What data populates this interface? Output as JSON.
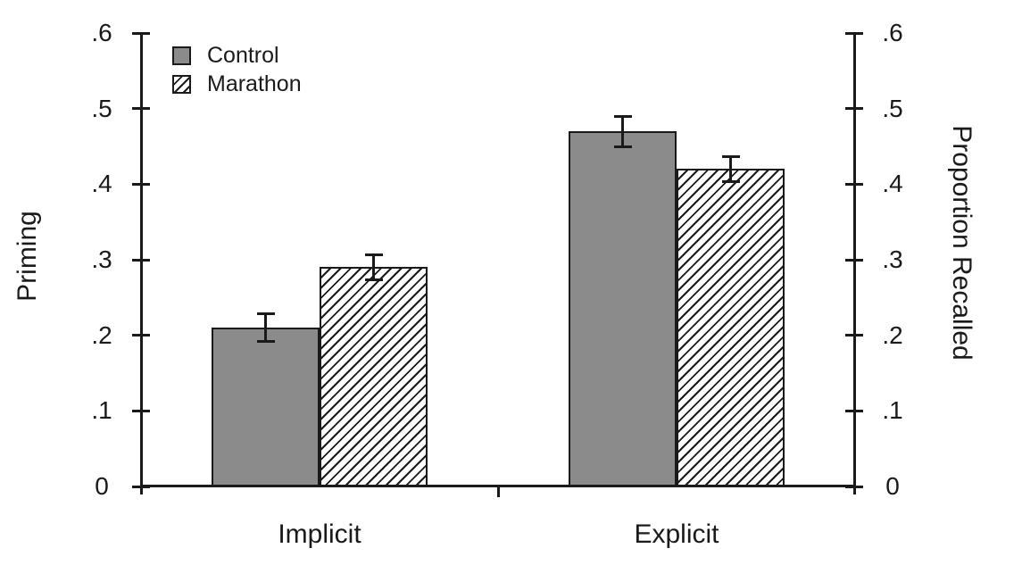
{
  "figure": {
    "left_axis_title": "Priming",
    "right_axis_title": "Proportion Recalled"
  },
  "chart_data": {
    "type": "bar",
    "categories": [
      "Implicit",
      "Explicit"
    ],
    "series": [
      {
        "name": "Control",
        "style": "solid",
        "color": "#8b8b8b",
        "values": [
          0.21,
          0.47
        ],
        "errors": [
          0.018,
          0.02
        ]
      },
      {
        "name": "Marathon",
        "style": "hatched",
        "color": "#ffffff",
        "values": [
          0.29,
          0.42
        ],
        "errors": [
          0.017,
          0.017
        ]
      }
    ],
    "ylabel_left": "Priming",
    "ylabel_right": "Proportion Recalled",
    "ylim": [
      0,
      0.6
    ],
    "yticks": {
      "values": [
        0.6,
        0.5,
        0.4,
        0.3,
        0.2,
        0.1,
        0
      ],
      "labels": [
        ".6",
        ".5",
        ".4",
        ".3",
        ".2",
        ".1",
        "0"
      ]
    },
    "grid": false,
    "legend_position": "top-left",
    "error_bars": true,
    "line_color": "#1a1a1a",
    "bar_fill_gray": "#8b8b8b"
  }
}
